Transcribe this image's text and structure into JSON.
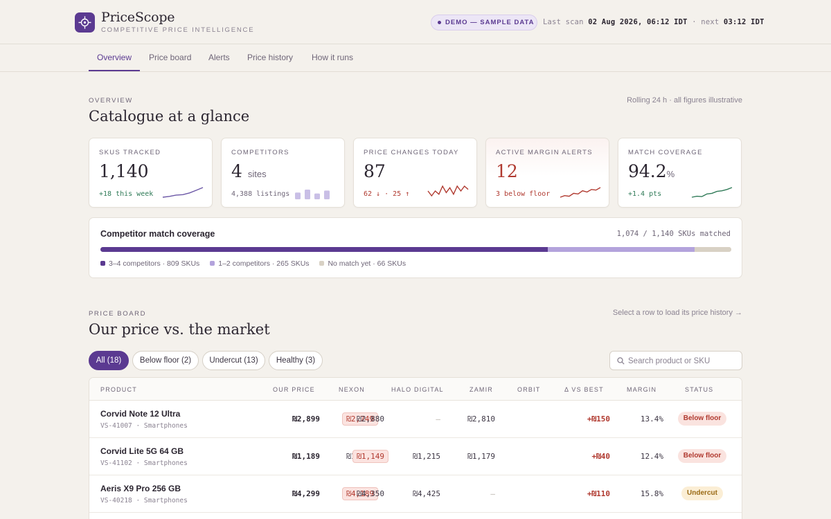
{
  "app": {
    "name": "PriceScope",
    "tagline": "COMPETITIVE PRICE INTELLIGENCE",
    "demo_badge": "DEMO — SAMPLE DATA",
    "last_scan_label": "Last scan",
    "last_scan_value": "02 Aug 2026, 06:12 IDT",
    "next_label": "· next",
    "next_value": "03:12 IDT"
  },
  "nav": {
    "tabs": [
      {
        "label": "Overview",
        "active": true
      },
      {
        "label": "Price board",
        "active": false
      },
      {
        "label": "Alerts",
        "active": false
      },
      {
        "label": "Price history",
        "active": false
      },
      {
        "label": "How it runs",
        "active": false
      }
    ]
  },
  "overview": {
    "eyebrow": "OVERVIEW",
    "title": "Catalogue at a glance",
    "note": "Rolling 24 h · all figures illustrative",
    "kpis": [
      {
        "label": "SKUS TRACKED",
        "value": "1,140",
        "unit": "",
        "sub": "+18 this week",
        "color": "#2f7a57",
        "spark": [
          2,
          2.4,
          3,
          3.2,
          4,
          5.2,
          6.5
        ]
      },
      {
        "label": "COMPETITORS",
        "value": "4",
        "unit": "sites",
        "sub": "4,388 listings",
        "color": "#6e6577",
        "bars": [
          0.7,
          1,
          0.6,
          0.9
        ]
      },
      {
        "label": "PRICE CHANGES TODAY",
        "value": "87",
        "unit": "",
        "sub": "62 ↓ · 25 ↑",
        "color": "#b0392f",
        "spark": [
          4,
          2.5,
          4,
          3,
          5.5,
          3.5,
          5,
          3,
          5.5,
          4,
          5.5,
          4.5
        ]
      },
      {
        "label": "ACTIVE MARGIN ALERTS",
        "value": "12",
        "unit": "",
        "sub": "3 below floor",
        "color": "#b0392f",
        "spark": [
          2,
          2.5,
          2.3,
          3.2,
          3,
          4,
          3.6,
          4.4,
          4.2,
          5
        ]
      },
      {
        "label": "MATCH COVERAGE",
        "value": "94.2",
        "unit": "%",
        "sub": "+1.4 pts",
        "color": "#2f7a57",
        "spark": [
          2,
          2.3,
          2.2,
          3,
          3.2,
          3.8,
          4,
          4.4,
          5
        ]
      }
    ]
  },
  "coverage": {
    "title": "Competitor match coverage",
    "matched": "1,074 / 1,140 SKUs matched",
    "total": 1140,
    "segments": [
      {
        "label": "3–4 competitors · 809 SKUs",
        "count": 809,
        "color": "#5b3a91"
      },
      {
        "label": "1–2 competitors · 265 SKUs",
        "count": 265,
        "color": "#b3a3dc"
      },
      {
        "label": "No match yet · 66 SKUs",
        "count": 66,
        "color": "#d8d1c4"
      }
    ]
  },
  "board": {
    "eyebrow": "PRICE BOARD",
    "title": "Our price vs. the market",
    "hint": "Select a row to load its price history →",
    "filters": [
      "All (18)",
      "Below floor (2)",
      "Undercut (13)",
      "Healthy (3)"
    ],
    "search_placeholder": "Search product or SKU",
    "columns": [
      "PRODUCT",
      "OUR PRICE",
      "NEXON",
      "HALO DIGITAL",
      "ZAMIR",
      "ORBIT",
      "Δ VS BEST",
      "MARGIN",
      "STATUS"
    ],
    "rows": [
      {
        "name": "Corvid Note 12 Ultra",
        "sku": "VS-41007 · Smartphones",
        "ours": "₪2,899",
        "nexon": "₪2,749",
        "halo": "₪2,880",
        "zamir": "—",
        "orbit": "₪2,810",
        "best": "nexon",
        "delta": "+₪150",
        "margin": "13.4%",
        "status": "Below floor",
        "status_kind": "below"
      },
      {
        "name": "Corvid Lite 5G 64 GB",
        "sku": "VS-41102 · Smartphones",
        "ours": "₪1,189",
        "nexon": "₪1,199",
        "halo": "₪1,149",
        "zamir": "₪1,215",
        "orbit": "₪1,179",
        "best": "halo",
        "delta": "+₪40",
        "margin": "12.4%",
        "status": "Below floor",
        "status_kind": "below"
      },
      {
        "name": "Aeris X9 Pro 256 GB",
        "sku": "VS-40218 · Smartphones",
        "ours": "₪4,299",
        "nexon": "₪4,189",
        "halo": "₪4,350",
        "zamir": "₪4,425",
        "orbit": "—",
        "best": "nexon",
        "delta": "+₪110",
        "margin": "15.8%",
        "status": "Undercut",
        "status_kind": "under"
      }
    ]
  }
}
